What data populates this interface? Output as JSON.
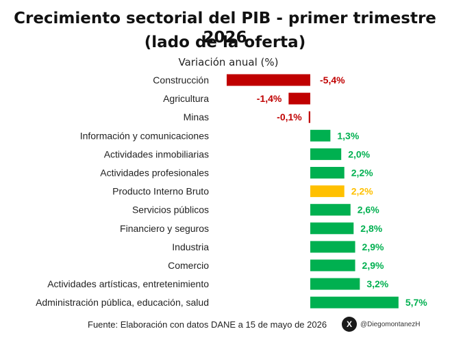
{
  "header": {
    "title_line1": "Crecimiento sectorial del PIB - primer trimestre 2026",
    "title_line2": "(lado de la oferta)",
    "subtitle": "Variación anual (%)"
  },
  "footer": {
    "source": "Fuente: Elaboración con datos DANE a 15 de mayo de 2026",
    "social_icon": "x-logo-icon",
    "social_glyph": "X",
    "handle": "@DiegomontanezH"
  },
  "colors": {
    "negative": "#C00000",
    "positive": "#00B050",
    "total": "#FFC000"
  },
  "chart_data": {
    "type": "bar",
    "orientation": "horizontal",
    "title": "Crecimiento sectorial del PIB - primer trimestre 2026 (lado de la oferta)",
    "subtitle": "Variación anual (%)",
    "categories": [
      "Construcción",
      "Agricultura",
      "Minas",
      "Información y comunicaciones",
      "Actividades inmobiliarias",
      "Actividades profesionales",
      "Producto Interno Bruto",
      "Servicios públicos",
      "Financiero y seguros",
      "Industria",
      "Comercio",
      "Actividades artísticas, entretenimiento",
      "Administración pública, educación, salud"
    ],
    "values": [
      -5.4,
      -1.4,
      -0.1,
      1.3,
      2.0,
      2.2,
      2.2,
      2.6,
      2.8,
      2.9,
      2.9,
      3.2,
      5.7
    ],
    "value_labels": [
      "-5,4%",
      "-1,4%",
      "-0,1%",
      "1,3%",
      "2,0%",
      "2,2%",
      "2,2%",
      "2,6%",
      "2,8%",
      "2,9%",
      "2,9%",
      "3,2%",
      "5,7%"
    ],
    "highlight": "Producto Interno Bruto",
    "grid": false,
    "legend": "none"
  }
}
